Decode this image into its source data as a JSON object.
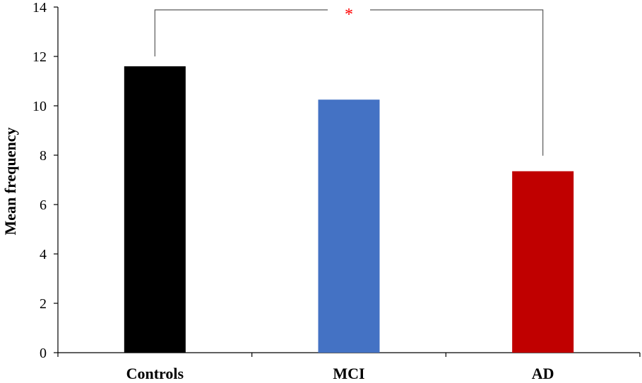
{
  "chart_data": {
    "type": "bar",
    "categories": [
      "Controls",
      "MCI",
      "AD"
    ],
    "values": [
      11.6,
      10.25,
      7.35
    ],
    "colors": [
      "#000000",
      "#4472C4",
      "#C00000"
    ],
    "title": "",
    "xlabel": "",
    "ylabel": "Mean frequency",
    "ylim": [
      0,
      14
    ],
    "yticks": [
      0,
      2,
      4,
      6,
      8,
      10,
      12,
      14
    ],
    "grid": false,
    "annotations": [
      {
        "type": "significance-bracket",
        "from": "Controls",
        "to": "AD",
        "label": "*",
        "color": "#FF0000"
      }
    ]
  }
}
